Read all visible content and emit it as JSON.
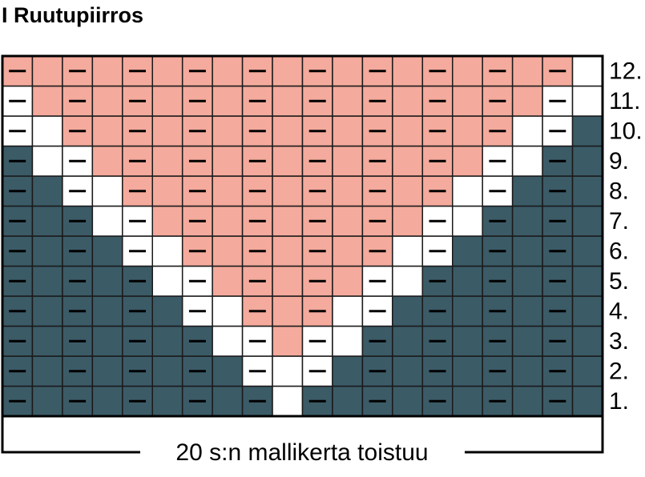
{
  "title": "I Ruutupiirros",
  "row_labels": [
    "1.",
    "2.",
    "3.",
    "4.",
    "5.",
    "6.",
    "7.",
    "8.",
    "9.",
    "10.",
    "11.",
    "12."
  ],
  "caption": "20 s:n mallikerta toistuu"
}
